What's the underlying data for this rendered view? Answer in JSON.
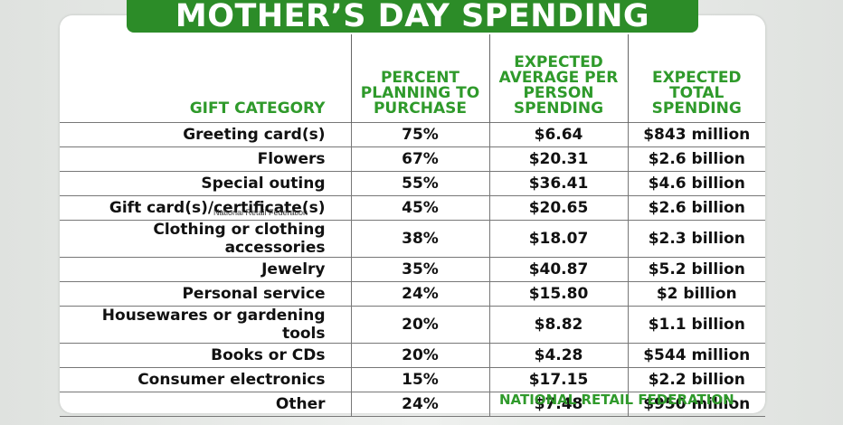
{
  "title": "MOTHER’S DAY SPENDING",
  "headers": {
    "category": "GIFT CATEGORY",
    "percent": "PERCENT PLANNING TO PURCHASE",
    "per_person": "EXPECTED AVERAGE PER PERSON SPENDING",
    "total": "EXPECTED TOTAL SPENDING"
  },
  "rows": [
    {
      "category": "Greeting card(s)",
      "percent": "75%",
      "per_person": "$6.64",
      "total": "$843 million"
    },
    {
      "category": "Flowers",
      "percent": "67%",
      "per_person": "$20.31",
      "total": "$2.6 billion"
    },
    {
      "category": "Special outing",
      "percent": "55%",
      "per_person": "$36.41",
      "total": "$4.6 billion"
    },
    {
      "category": "Gift card(s)/certificate(s)",
      "percent": "45%",
      "per_person": "$20.65",
      "total": "$2.6 billion"
    },
    {
      "category": "Clothing or clothing accessories",
      "percent": "38%",
      "per_person": "$18.07",
      "total": "$2.3 billion"
    },
    {
      "category": "Jewelry",
      "percent": "35%",
      "per_person": "$40.87",
      "total": "$5.2 billion"
    },
    {
      "category": "Personal service",
      "percent": "24%",
      "per_person": "$15.80",
      "total": "$2 billion"
    },
    {
      "category": "Housewares or gardening tools",
      "percent": "20%",
      "per_person": "$8.82",
      "total": "$1.1 billion"
    },
    {
      "category": "Books or CDs",
      "percent": "20%",
      "per_person": "$4.28",
      "total": "$544 million"
    },
    {
      "category": "Consumer electronics",
      "percent": "15%",
      "per_person": "$17.15",
      "total": "$2.2 billion"
    },
    {
      "category": "Other",
      "percent": "24%",
      "per_person": "$7.48",
      "total": "$950 million"
    }
  ],
  "source_small": "National Retail Federation",
  "footer": "NATIONAL RETAIL FEDERATION",
  "colors": {
    "accent": "#2f9a2b",
    "banner": "#2c8c28"
  }
}
